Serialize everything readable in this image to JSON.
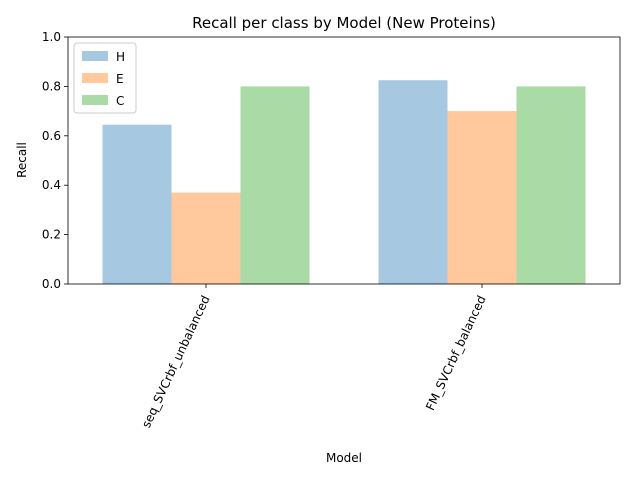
{
  "chart_data": {
    "type": "bar",
    "title": "Recall per class by Model (New Proteins)",
    "xlabel": "Model",
    "ylabel": "Recall",
    "ylim": [
      0,
      1.0
    ],
    "yticks": [
      0.0,
      0.2,
      0.4,
      0.6,
      0.8,
      1.0
    ],
    "ytick_labels": [
      "0.0",
      "0.2",
      "0.4",
      "0.6",
      "0.8",
      "1.0"
    ],
    "categories": [
      "seq_SVCrbf_unbalanced",
      "FM_SVCrbf_balanced"
    ],
    "series": [
      {
        "name": "H",
        "color": "#a6c8e1",
        "values": [
          0.645,
          0.825
        ]
      },
      {
        "name": "E",
        "color": "#ffc99d",
        "values": [
          0.37,
          0.7
        ]
      },
      {
        "name": "C",
        "color": "#aadba6",
        "values": [
          0.8,
          0.8
        ]
      }
    ],
    "grid": false,
    "legend_position": "top-left"
  }
}
